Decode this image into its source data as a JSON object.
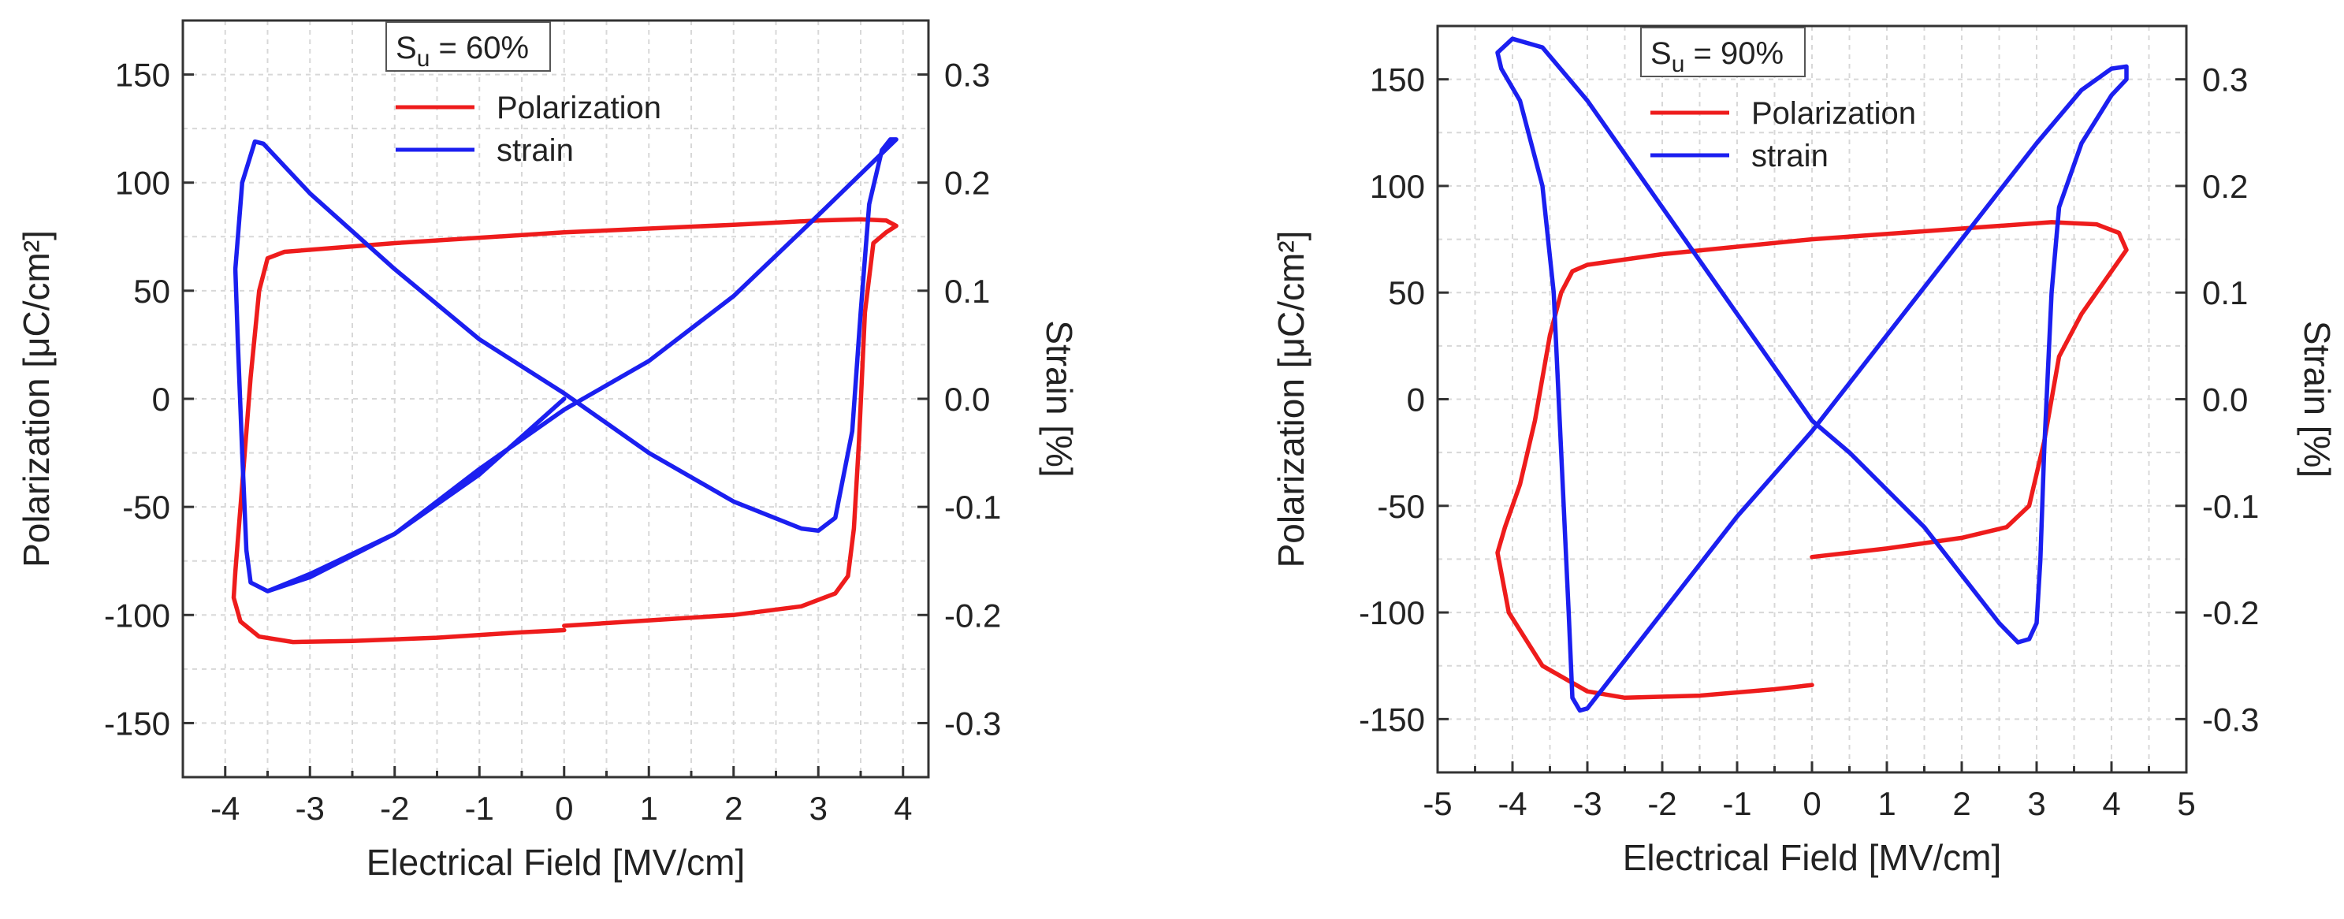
{
  "colors": {
    "polarization": "#ee1c1c",
    "strain": "#1b1ff0",
    "grid": "#d8d8d8"
  },
  "chart_data": [
    {
      "type": "line",
      "xlabel": "Electrical Field [MV/cm]",
      "ylabel": "Polarization [μC/cm²]",
      "y2label": "Strain [%]",
      "xlim": [
        -4.5,
        4.3
      ],
      "ylim": [
        -175,
        175
      ],
      "y2lim": [
        -0.35,
        0.35
      ],
      "xticks": [
        -4,
        -3,
        -2,
        -1,
        0,
        1,
        2,
        3,
        4
      ],
      "xtick_labels": [
        "-4",
        "-3",
        "-2",
        "-1",
        "0",
        "1",
        "2",
        "3",
        "4"
      ],
      "yticks": [
        150,
        100,
        50,
        0,
        -50,
        -100,
        -150
      ],
      "ytick_labels": [
        "150",
        "100",
        "50",
        "0",
        "-50",
        "-100",
        "-150"
      ],
      "y2ticks": [
        0.3,
        0.2,
        0.1,
        0.0,
        -0.1,
        -0.2,
        -0.3
      ],
      "y2tick_labels": [
        "0.3",
        "0.2",
        "0.1",
        "0.0",
        "-0.1",
        "-0.2",
        "-0.3"
      ],
      "legend_title_main": "S",
      "legend_title_sub": "u",
      "legend_title_rest": " = 60%",
      "legend_position": "top-center",
      "series": [
        {
          "name": "Polarization",
          "axis": "left",
          "points": [
            [
              0.0,
              -107
            ],
            [
              -0.5,
              -108
            ],
            [
              -1.5,
              -110.5
            ],
            [
              -2.5,
              -112
            ],
            [
              -3.2,
              -112.5
            ],
            [
              -3.6,
              -110
            ],
            [
              -3.82,
              -103
            ],
            [
              -3.9,
              -92
            ],
            [
              -3.88,
              -80
            ],
            [
              -3.8,
              -40
            ],
            [
              -3.7,
              10
            ],
            [
              -3.6,
              50
            ],
            [
              -3.5,
              65
            ],
            [
              -3.3,
              68
            ],
            [
              -2.0,
              72
            ],
            [
              0.0,
              77
            ],
            [
              2.0,
              80.5
            ],
            [
              3.0,
              82.5
            ],
            [
              3.5,
              83
            ],
            [
              3.8,
              82.5
            ],
            [
              3.92,
              80
            ],
            [
              3.8,
              77
            ],
            [
              3.65,
              72
            ],
            [
              3.55,
              40
            ],
            [
              3.48,
              -20
            ],
            [
              3.42,
              -60
            ],
            [
              3.35,
              -82
            ],
            [
              3.2,
              -90
            ],
            [
              2.8,
              -96
            ],
            [
              2.0,
              -100
            ],
            [
              1.0,
              -102.5
            ],
            [
              0.0,
              -105
            ]
          ]
        },
        {
          "name": "strain",
          "axis": "right",
          "points": [
            [
              0.0,
              0.0
            ],
            [
              -1.0,
              -0.07
            ],
            [
              -2.0,
              -0.125
            ],
            [
              -3.0,
              -0.162
            ],
            [
              -3.5,
              -0.178
            ],
            [
              -3.7,
              -0.17
            ],
            [
              -3.75,
              -0.14
            ],
            [
              -3.8,
              -0.05
            ],
            [
              -3.85,
              0.05
            ],
            [
              -3.88,
              0.12
            ],
            [
              -3.8,
              0.2
            ],
            [
              -3.65,
              0.238
            ],
            [
              -3.55,
              0.236
            ],
            [
              -3.0,
              0.19
            ],
            [
              -2.0,
              0.12
            ],
            [
              -1.0,
              0.055
            ],
            [
              0.0,
              0.005
            ],
            [
              1.0,
              -0.05
            ],
            [
              2.0,
              -0.095
            ],
            [
              2.8,
              -0.12
            ],
            [
              3.0,
              -0.122
            ],
            [
              3.2,
              -0.11
            ],
            [
              3.4,
              -0.03
            ],
            [
              3.5,
              0.08
            ],
            [
              3.6,
              0.18
            ],
            [
              3.75,
              0.23
            ],
            [
              3.85,
              0.24
            ],
            [
              3.92,
              0.24
            ],
            [
              3.0,
              0.17
            ],
            [
              2.0,
              0.095
            ],
            [
              1.0,
              0.035
            ],
            [
              0.0,
              -0.01
            ],
            [
              -1.0,
              -0.065
            ],
            [
              -2.0,
              -0.125
            ],
            [
              -3.0,
              -0.165
            ],
            [
              -3.5,
              -0.178
            ]
          ]
        }
      ]
    },
    {
      "type": "line",
      "xlabel": "Electrical Field [MV/cm]",
      "ylabel": "Polarization [μC/cm²]",
      "y2label": "Strain [%]",
      "xlim": [
        -5.0,
        5.0
      ],
      "ylim": [
        -175,
        175
      ],
      "y2lim": [
        -0.35,
        0.35
      ],
      "xticks": [
        -5,
        -4,
        -3,
        -2,
        -1,
        0,
        1,
        2,
        3,
        4,
        5
      ],
      "xtick_labels": [
        "-5",
        "-4",
        "-3",
        "-2",
        "-1",
        "0",
        "1",
        "2",
        "3",
        "4",
        "5"
      ],
      "yticks": [
        150,
        100,
        50,
        0,
        -50,
        -100,
        -150
      ],
      "ytick_labels": [
        "150",
        "100",
        "50",
        "0",
        "-50",
        "-100",
        "-150"
      ],
      "y2ticks": [
        0.3,
        0.2,
        0.1,
        0.0,
        -0.1,
        -0.2,
        -0.3
      ],
      "y2tick_labels": [
        "0.3",
        "0.2",
        "0.1",
        "0.0",
        "-0.1",
        "-0.2",
        "-0.3"
      ],
      "legend_title_main": "S",
      "legend_title_sub": "u",
      "legend_title_rest": " = 90%",
      "legend_position": "top-center",
      "series": [
        {
          "name": "Polarization",
          "axis": "left",
          "points": [
            [
              0.0,
              -74
            ],
            [
              1.0,
              -70
            ],
            [
              2.0,
              -65
            ],
            [
              2.6,
              -60
            ],
            [
              2.9,
              -50
            ],
            [
              3.1,
              -20
            ],
            [
              3.3,
              20
            ],
            [
              3.6,
              40
            ],
            [
              3.9,
              55
            ],
            [
              4.2,
              70
            ],
            [
              4.1,
              78
            ],
            [
              3.8,
              82
            ],
            [
              3.2,
              83
            ],
            [
              2.0,
              80
            ],
            [
              0.0,
              75
            ],
            [
              -2.0,
              68
            ],
            [
              -3.0,
              63
            ],
            [
              -3.2,
              60
            ],
            [
              -3.35,
              50
            ],
            [
              -3.5,
              30
            ],
            [
              -3.7,
              -10
            ],
            [
              -3.9,
              -40
            ],
            [
              -4.1,
              -60
            ],
            [
              -4.2,
              -72
            ],
            [
              -4.05,
              -100
            ],
            [
              -3.6,
              -125
            ],
            [
              -3.0,
              -137
            ],
            [
              -2.5,
              -140
            ],
            [
              -1.5,
              -139
            ],
            [
              -0.5,
              -136
            ],
            [
              0.0,
              -134
            ]
          ]
        },
        {
          "name": "strain",
          "axis": "right",
          "points": [
            [
              0.0,
              -0.02
            ],
            [
              -1.0,
              0.08
            ],
            [
              -2.0,
              0.18
            ],
            [
              -3.0,
              0.28
            ],
            [
              -3.6,
              0.33
            ],
            [
              -4.0,
              0.338
            ],
            [
              -4.2,
              0.325
            ],
            [
              -4.15,
              0.31
            ],
            [
              -3.9,
              0.28
            ],
            [
              -3.6,
              0.2
            ],
            [
              -3.45,
              0.1
            ],
            [
              -3.35,
              -0.05
            ],
            [
              -3.25,
              -0.2
            ],
            [
              -3.2,
              -0.28
            ],
            [
              -3.1,
              -0.292
            ],
            [
              -3.0,
              -0.29
            ],
            [
              -2.0,
              -0.2
            ],
            [
              -1.0,
              -0.11
            ],
            [
              0.0,
              -0.03
            ],
            [
              1.0,
              0.06
            ],
            [
              2.0,
              0.15
            ],
            [
              3.0,
              0.24
            ],
            [
              3.6,
              0.29
            ],
            [
              4.0,
              0.31
            ],
            [
              4.2,
              0.312
            ],
            [
              4.2,
              0.3
            ],
            [
              4.0,
              0.285
            ],
            [
              3.6,
              0.24
            ],
            [
              3.3,
              0.18
            ],
            [
              3.2,
              0.1
            ],
            [
              3.1,
              -0.05
            ],
            [
              3.05,
              -0.15
            ],
            [
              3.0,
              -0.21
            ],
            [
              2.9,
              -0.225
            ],
            [
              2.75,
              -0.228
            ],
            [
              2.5,
              -0.21
            ],
            [
              1.5,
              -0.12
            ],
            [
              0.5,
              -0.05
            ],
            [
              0.0,
              -0.02
            ]
          ]
        }
      ]
    }
  ]
}
